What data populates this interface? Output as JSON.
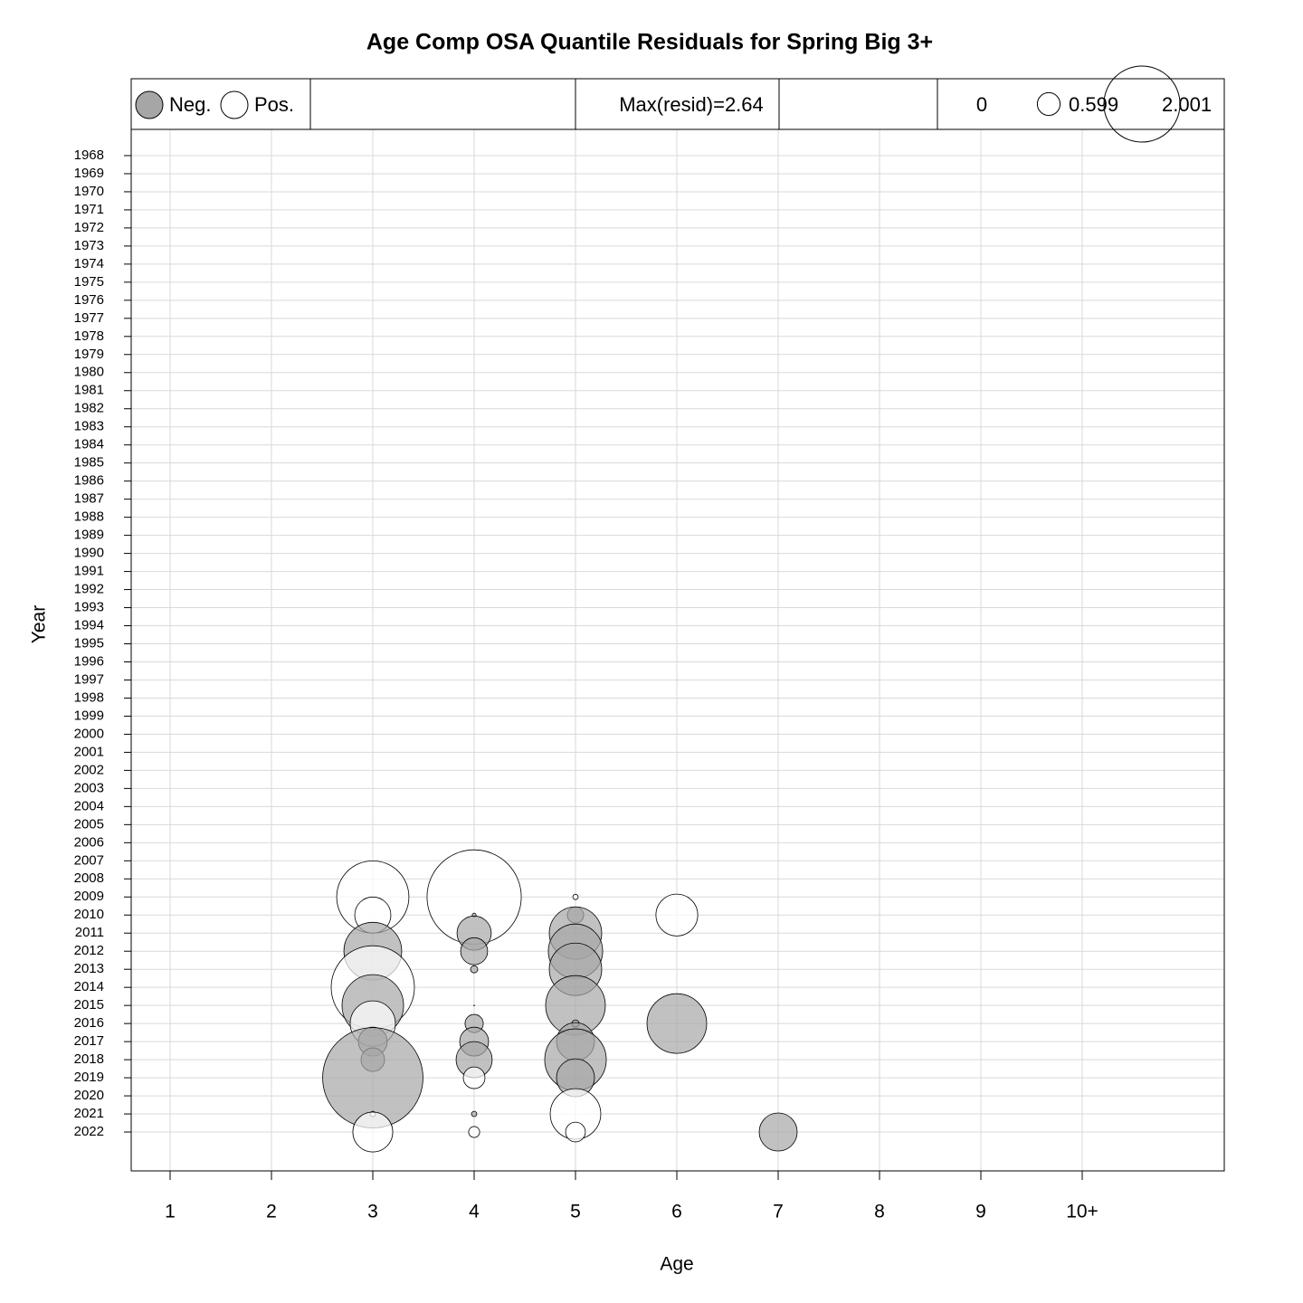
{
  "chart_data": {
    "type": "bubble",
    "title": "Age Comp OSA Quantile Residuals for Spring Big 3+",
    "x_label": "Age",
    "y_label": "Year",
    "categories": [
      "1",
      "2",
      "3",
      "4",
      "5",
      "6",
      "7",
      "8",
      "9",
      "10+"
    ],
    "ylim": [
      1966.55,
      2024.15
    ],
    "yticks": [
      1968,
      1969,
      1970,
      1971,
      1972,
      1973,
      1974,
      1975,
      1976,
      1977,
      1978,
      1979,
      1980,
      1981,
      1982,
      1983,
      1984,
      1985,
      1986,
      1987,
      1988,
      1989,
      1990,
      1991,
      1992,
      1993,
      1994,
      1995,
      1996,
      1997,
      1998,
      1999,
      2000,
      2001,
      2002,
      2003,
      2004,
      2005,
      2006,
      2007,
      2008,
      2009,
      2010,
      2011,
      2012,
      2013,
      2014,
      2015,
      2016,
      2017,
      2018,
      2019,
      2020,
      2021,
      2022
    ],
    "y_reversed": true,
    "grid": true,
    "legend_labels": [
      "Neg.",
      "Pos."
    ],
    "neg_color": "#a6a6a6",
    "pos_color": "#ffffff",
    "max_label": "Max(resid)=2.64",
    "size_legend": [
      0,
      0.599,
      2.001
    ],
    "points": [
      {
        "age": "3",
        "year": 2009,
        "resid": 1.9
      },
      {
        "age": "3",
        "year": 2010,
        "resid": 0.95
      },
      {
        "age": "3",
        "year": 2012,
        "resid": -1.52
      },
      {
        "age": "3",
        "year": 2014,
        "resid": 2.19
      },
      {
        "age": "3",
        "year": 2015,
        "resid": -1.62
      },
      {
        "age": "3",
        "year": 2016,
        "resid": 1.19
      },
      {
        "age": "3",
        "year": 2017,
        "resid": -0.76
      },
      {
        "age": "3",
        "year": 2018,
        "resid": -0.62
      },
      {
        "age": "3",
        "year": 2019,
        "resid": -2.64
      },
      {
        "age": "3",
        "year": 2021,
        "resid": 0.14
      },
      {
        "age": "3",
        "year": 2022,
        "resid": 1.05
      },
      {
        "age": "4",
        "year": 2009,
        "resid": 2.48
      },
      {
        "age": "4",
        "year": 2010,
        "resid": -0.1
      },
      {
        "age": "4",
        "year": 2011,
        "resid": -0.9
      },
      {
        "age": "4",
        "year": 2012,
        "resid": -0.71
      },
      {
        "age": "4",
        "year": 2013,
        "resid": -0.19
      },
      {
        "age": "4",
        "year": 2015,
        "resid": 0.02
      },
      {
        "age": "4",
        "year": 2016,
        "resid": -0.48
      },
      {
        "age": "4",
        "year": 2017,
        "resid": -0.76
      },
      {
        "age": "4",
        "year": 2018,
        "resid": -0.95
      },
      {
        "age": "4",
        "year": 2019,
        "resid": 0.57
      },
      {
        "age": "4",
        "year": 2021,
        "resid": -0.14
      },
      {
        "age": "4",
        "year": 2022,
        "resid": 0.29
      },
      {
        "age": "5",
        "year": 2009,
        "resid": 0.14
      },
      {
        "age": "5",
        "year": 2010,
        "resid": -0.43
      },
      {
        "age": "5",
        "year": 2011,
        "resid": -1.38
      },
      {
        "age": "5",
        "year": 2012,
        "resid": -1.43
      },
      {
        "age": "5",
        "year": 2013,
        "resid": -1.38
      },
      {
        "age": "5",
        "year": 2015,
        "resid": -1.57
      },
      {
        "age": "5",
        "year": 2016,
        "resid": -0.19
      },
      {
        "age": "5",
        "year": 2017,
        "resid": -1.0
      },
      {
        "age": "5",
        "year": 2018,
        "resid": -1.62
      },
      {
        "age": "5",
        "year": 2019,
        "resid": -1.0
      },
      {
        "age": "5",
        "year": 2021,
        "resid": 1.33
      },
      {
        "age": "5",
        "year": 2022,
        "resid": 0.52
      },
      {
        "age": "6",
        "year": 2010,
        "resid": 1.1
      },
      {
        "age": "6",
        "year": 2016,
        "resid": -1.57
      },
      {
        "age": "7",
        "year": 2022,
        "resid": -1.0
      }
    ]
  }
}
